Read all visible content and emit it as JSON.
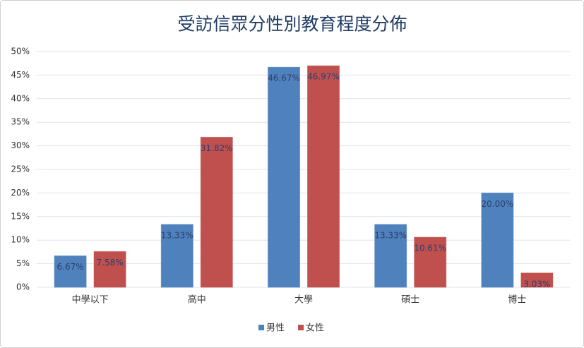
{
  "chart_data": {
    "type": "bar",
    "title": "受訪信眾分性別教育程度分佈",
    "categories": [
      "中學以下",
      "高中",
      "大學",
      "碩士",
      "博士"
    ],
    "series": [
      {
        "name": "男性",
        "color": "#4f81bd",
        "values": [
          6.67,
          13.33,
          46.67,
          13.33,
          20.0
        ],
        "value_labels": [
          "6.67%",
          "13.33%",
          "46.67%",
          "13.33%",
          "20.00%"
        ]
      },
      {
        "name": "女性",
        "color": "#c0504d",
        "values": [
          7.58,
          31.82,
          46.97,
          10.61,
          3.03
        ],
        "value_labels": [
          "7.58%",
          "31.82%",
          "46.97%",
          "10.61%",
          "3.03%"
        ]
      }
    ],
    "ylim": [
      0,
      50
    ],
    "yticks": [
      {
        "value": 0,
        "label": "0%"
      },
      {
        "value": 5,
        "label": "5%"
      },
      {
        "value": 10,
        "label": "10%"
      },
      {
        "value": 15,
        "label": "15%"
      },
      {
        "value": 20,
        "label": "20%"
      },
      {
        "value": 25,
        "label": "25%"
      },
      {
        "value": 30,
        "label": "30%"
      },
      {
        "value": 35,
        "label": "35%"
      },
      {
        "value": 40,
        "label": "40%"
      },
      {
        "value": 45,
        "label": "45%"
      },
      {
        "value": 50,
        "label": "50%"
      }
    ],
    "grid": true,
    "legend": "bottom"
  }
}
